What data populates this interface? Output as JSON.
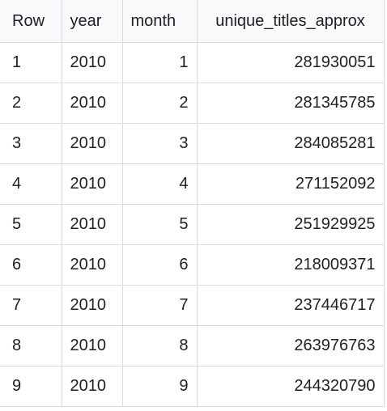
{
  "table": {
    "columns": [
      "Row",
      "year",
      "month",
      "unique_titles_approx"
    ],
    "rows": [
      {
        "row": "1",
        "year": "2010",
        "month": "1",
        "unique_titles_approx": "281930051"
      },
      {
        "row": "2",
        "year": "2010",
        "month": "2",
        "unique_titles_approx": "281345785"
      },
      {
        "row": "3",
        "year": "2010",
        "month": "3",
        "unique_titles_approx": "284085281"
      },
      {
        "row": "4",
        "year": "2010",
        "month": "4",
        "unique_titles_approx": "271152092"
      },
      {
        "row": "5",
        "year": "2010",
        "month": "5",
        "unique_titles_approx": "251929925"
      },
      {
        "row": "6",
        "year": "2010",
        "month": "6",
        "unique_titles_approx": "218009371"
      },
      {
        "row": "7",
        "year": "2010",
        "month": "7",
        "unique_titles_approx": "237446717"
      },
      {
        "row": "8",
        "year": "2010",
        "month": "8",
        "unique_titles_approx": "263976763"
      },
      {
        "row": "9",
        "year": "2010",
        "month": "9",
        "unique_titles_approx": "244320790"
      }
    ]
  },
  "colors": {
    "header_background": "#f8f9fa",
    "grid_line": "#dadce0",
    "text": "#202124"
  }
}
